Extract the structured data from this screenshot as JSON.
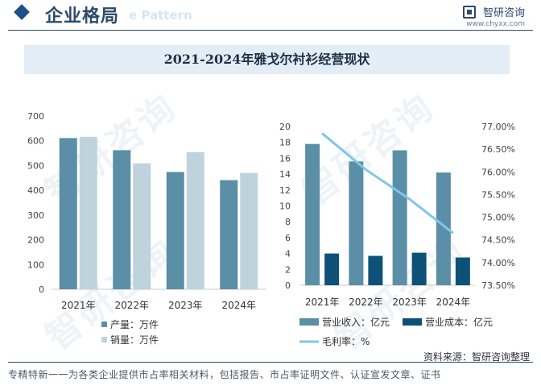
{
  "header": {
    "section_title": "企业格局",
    "section_subtitle": "e Pattern",
    "brand_name": "智研咨询",
    "brand_url": "www.chyxx.com"
  },
  "watermark_text": "智研咨询",
  "chart_title": "2021-2024年雅戈尔衬衫经营现状",
  "chart_data": [
    {
      "type": "bar",
      "categories": [
        "2021年",
        "2022年",
        "2023年",
        "2024年"
      ],
      "ylim": [
        0,
        700
      ],
      "yticks": [
        0,
        100,
        200,
        300,
        400,
        500,
        600,
        700
      ],
      "series": [
        {
          "name": "产量：万件",
          "color": "#5b8ea7",
          "values": [
            611,
            562,
            474,
            441
          ]
        },
        {
          "name": "销量：万件",
          "color": "#bfd3dd",
          "values": [
            616,
            509,
            554,
            470
          ]
        }
      ],
      "legend_position": "bottom"
    },
    {
      "type": "bar",
      "categories": [
        "2021年",
        "2022年",
        "2023年",
        "2024年"
      ],
      "ylim": [
        0,
        20
      ],
      "yticks": [
        0,
        2,
        4,
        6,
        8,
        10,
        12,
        14,
        16,
        18,
        20
      ],
      "y2lim": [
        73.5,
        77.0
      ],
      "y2ticks": [
        "73.50%",
        "74.00%",
        "74.50%",
        "75.00%",
        "75.50%",
        "76.00%",
        "76.50%",
        "77.00%"
      ],
      "series": [
        {
          "name": "营业收入：亿元",
          "color": "#5b8ea7",
          "axis": "left",
          "values": [
            17.8,
            15.6,
            17.0,
            14.2
          ]
        },
        {
          "name": "营业成本：亿元",
          "color": "#0e5178",
          "axis": "left",
          "values": [
            4.0,
            3.7,
            4.1,
            3.5
          ]
        },
        {
          "name": "毛利率：%",
          "color": "#7dc7ea",
          "axis": "right",
          "kind": "line",
          "values": [
            76.85,
            76.05,
            75.4,
            74.65
          ]
        }
      ],
      "legend_position": "bottom"
    }
  ],
  "footer": {
    "source": "资料来源：智研咨询整理",
    "slogan": "专精特新一一为各类企业提供市占率相关材料，包括报告、市占率证明文件、认证宣发文章、证书"
  }
}
